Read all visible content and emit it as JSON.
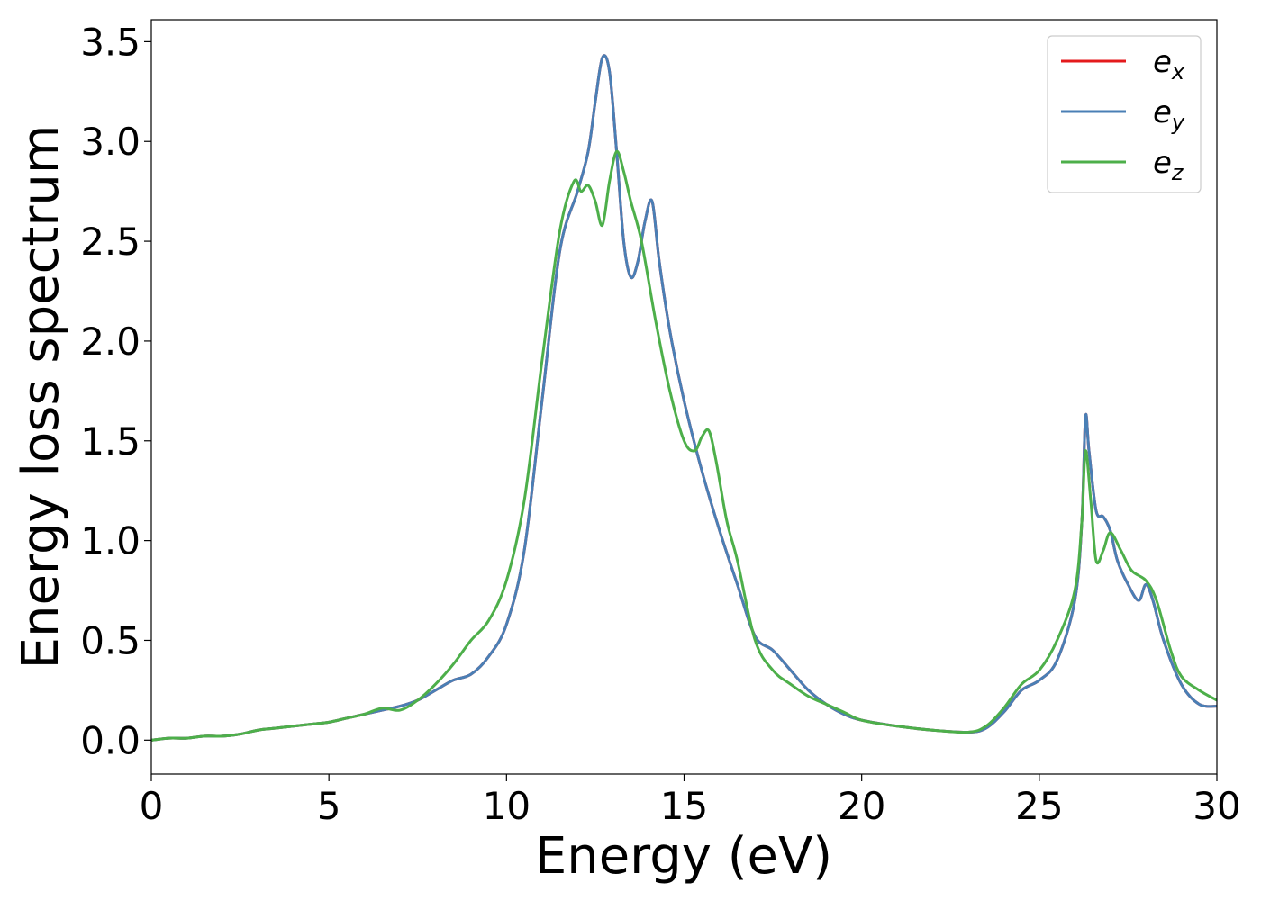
{
  "chart_data": {
    "type": "line",
    "xlabel": "Energy (eV)",
    "ylabel": "Energy loss spectrum",
    "xlim": [
      0,
      30
    ],
    "ylim": [
      -0.17,
      3.61
    ],
    "xticks": [
      "0",
      "5",
      "10",
      "15",
      "20",
      "25",
      "30"
    ],
    "yticks": [
      "0.0",
      "0.5",
      "1.0",
      "1.5",
      "2.0",
      "2.5",
      "3.0",
      "3.5"
    ],
    "grid": false,
    "legend_position": "top-right",
    "series": [
      {
        "name": "e_x",
        "legend_base": "e",
        "legend_sub": "x",
        "color": "#e41a1c",
        "x": [
          0,
          0.5,
          1,
          1.5,
          2,
          2.5,
          3,
          3.5,
          4,
          4.5,
          5,
          5.5,
          6,
          6.5,
          7,
          7.5,
          8,
          8.5,
          9,
          9.5,
          10,
          10.5,
          11,
          11.5,
          12,
          12.3,
          12.5,
          12.7,
          12.9,
          13.1,
          13.3,
          13.5,
          13.7,
          13.9,
          14.1,
          14.3,
          14.6,
          15,
          15.5,
          16,
          16.5,
          17,
          17.5,
          18,
          18.5,
          19,
          19.5,
          20,
          21,
          22,
          23,
          23.5,
          24,
          24.5,
          25,
          25.5,
          26,
          26.2,
          26.3,
          26.4,
          26.6,
          26.8,
          27,
          27.2,
          27.5,
          27.8,
          28,
          28.2,
          28.5,
          29,
          29.5,
          30
        ],
        "values": [
          0.0,
          0.01,
          0.01,
          0.02,
          0.02,
          0.03,
          0.05,
          0.06,
          0.07,
          0.08,
          0.09,
          0.11,
          0.13,
          0.15,
          0.17,
          0.2,
          0.25,
          0.3,
          0.33,
          0.42,
          0.58,
          0.95,
          1.7,
          2.45,
          2.75,
          2.95,
          3.2,
          3.42,
          3.35,
          2.95,
          2.5,
          2.32,
          2.4,
          2.6,
          2.7,
          2.4,
          2.05,
          1.7,
          1.35,
          1.05,
          0.78,
          0.52,
          0.45,
          0.35,
          0.25,
          0.18,
          0.13,
          0.1,
          0.07,
          0.05,
          0.04,
          0.06,
          0.14,
          0.25,
          0.3,
          0.4,
          0.7,
          1.1,
          1.62,
          1.45,
          1.15,
          1.12,
          1.05,
          0.9,
          0.78,
          0.7,
          0.78,
          0.7,
          0.5,
          0.28,
          0.18,
          0.17
        ]
      },
      {
        "name": "e_y",
        "legend_base": "e",
        "legend_sub": "y",
        "color": "#4a7fb5",
        "x": [
          0,
          0.5,
          1,
          1.5,
          2,
          2.5,
          3,
          3.5,
          4,
          4.5,
          5,
          5.5,
          6,
          6.5,
          7,
          7.5,
          8,
          8.5,
          9,
          9.5,
          10,
          10.5,
          11,
          11.5,
          12,
          12.3,
          12.5,
          12.7,
          12.9,
          13.1,
          13.3,
          13.5,
          13.7,
          13.9,
          14.1,
          14.3,
          14.6,
          15,
          15.5,
          16,
          16.5,
          17,
          17.5,
          18,
          18.5,
          19,
          19.5,
          20,
          21,
          22,
          23,
          23.5,
          24,
          24.5,
          25,
          25.5,
          26,
          26.2,
          26.3,
          26.4,
          26.6,
          26.8,
          27,
          27.2,
          27.5,
          27.8,
          28,
          28.2,
          28.5,
          29,
          29.5,
          30
        ],
        "values": [
          0.0,
          0.01,
          0.01,
          0.02,
          0.02,
          0.03,
          0.05,
          0.06,
          0.07,
          0.08,
          0.09,
          0.11,
          0.13,
          0.15,
          0.17,
          0.2,
          0.25,
          0.3,
          0.33,
          0.42,
          0.58,
          0.95,
          1.7,
          2.45,
          2.75,
          2.95,
          3.2,
          3.42,
          3.35,
          2.95,
          2.5,
          2.32,
          2.4,
          2.6,
          2.7,
          2.4,
          2.05,
          1.7,
          1.35,
          1.05,
          0.78,
          0.52,
          0.45,
          0.35,
          0.25,
          0.18,
          0.13,
          0.1,
          0.07,
          0.05,
          0.04,
          0.06,
          0.14,
          0.25,
          0.3,
          0.4,
          0.7,
          1.1,
          1.62,
          1.45,
          1.15,
          1.12,
          1.05,
          0.9,
          0.78,
          0.7,
          0.78,
          0.7,
          0.5,
          0.28,
          0.18,
          0.17
        ]
      },
      {
        "name": "e_z",
        "legend_base": "e",
        "legend_sub": "z",
        "color": "#4daf4a",
        "x": [
          0,
          0.5,
          1,
          1.5,
          2,
          2.5,
          3,
          3.5,
          4,
          4.5,
          5,
          5.5,
          6,
          6.5,
          7,
          7.5,
          8,
          8.5,
          9,
          9.5,
          10,
          10.5,
          11,
          11.5,
          11.9,
          12.1,
          12.3,
          12.5,
          12.7,
          12.9,
          13.1,
          13.3,
          13.5,
          13.8,
          14.2,
          14.6,
          15,
          15.3,
          15.5,
          15.7,
          15.9,
          16.2,
          16.5,
          17,
          17.5,
          18,
          18.5,
          19,
          19.5,
          20,
          21,
          22,
          23,
          23.5,
          24,
          24.5,
          25,
          25.5,
          26,
          26.2,
          26.3,
          26.45,
          26.6,
          26.8,
          27,
          27.3,
          27.6,
          28,
          28.3,
          28.7,
          29,
          29.5,
          30
        ],
        "values": [
          0.0,
          0.01,
          0.01,
          0.02,
          0.02,
          0.03,
          0.05,
          0.06,
          0.07,
          0.08,
          0.09,
          0.11,
          0.13,
          0.16,
          0.15,
          0.2,
          0.28,
          0.38,
          0.5,
          0.6,
          0.8,
          1.2,
          1.9,
          2.55,
          2.8,
          2.75,
          2.78,
          2.7,
          2.58,
          2.8,
          2.95,
          2.85,
          2.7,
          2.5,
          2.1,
          1.75,
          1.5,
          1.45,
          1.52,
          1.55,
          1.4,
          1.1,
          0.9,
          0.5,
          0.35,
          0.28,
          0.22,
          0.18,
          0.14,
          0.1,
          0.07,
          0.05,
          0.04,
          0.07,
          0.16,
          0.28,
          0.35,
          0.5,
          0.75,
          1.1,
          1.45,
          1.2,
          0.9,
          0.95,
          1.04,
          0.95,
          0.85,
          0.8,
          0.7,
          0.45,
          0.32,
          0.25,
          0.2
        ]
      }
    ]
  }
}
